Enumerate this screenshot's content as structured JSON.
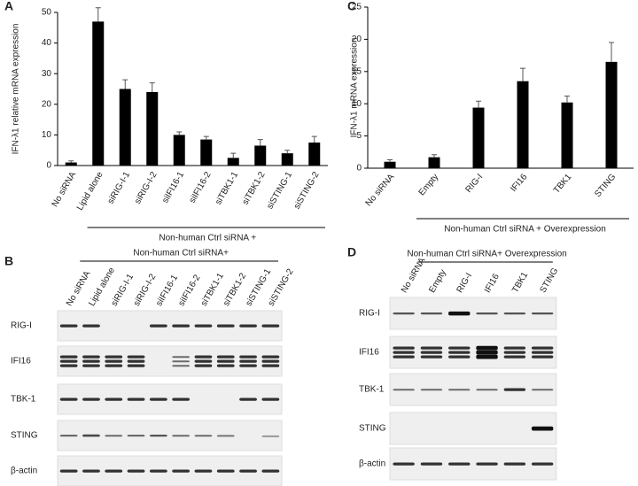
{
  "chart_data": [
    {
      "type": "bar",
      "label": "A",
      "y_label": "IFN-λ1 relative mRNA expression",
      "annotation": "Non-human Ctrl siRNA +",
      "categories": [
        "No siRNA",
        "Lipid alone",
        "siRIG-I-1",
        "siRIG-I-2",
        "siIFI16-1",
        "siIFI16-2",
        "siTBK1-1",
        "siTBK1-2",
        "siSTING-1",
        "siSTING-2"
      ],
      "values": [
        1,
        47,
        25,
        24,
        10,
        8.5,
        2.5,
        6.5,
        4,
        7.5
      ],
      "errors": [
        0.5,
        4.5,
        3,
        3,
        1,
        1,
        1.5,
        2,
        1,
        2
      ],
      "color": "#000000",
      "ylim": [
        0,
        50
      ],
      "yticks": [
        0,
        10,
        20,
        30,
        40,
        50
      ]
    },
    {
      "type": "bar",
      "label": "C",
      "y_label": "IFN-λ1 mRNA expression",
      "annotation": "Non-human Ctrl siRNA + Overexpression",
      "categories": [
        "No siRNA",
        "Empty",
        "RIG-I",
        "IFI16",
        "TBK1",
        "STING"
      ],
      "values": [
        1,
        1.7,
        9.4,
        13.5,
        10.2,
        16.5
      ],
      "errors": [
        0.3,
        0.4,
        1,
        2,
        1,
        3
      ],
      "color": "#000000",
      "ylim": [
        0,
        25
      ],
      "yticks": [
        0,
        5,
        10,
        15,
        20,
        25
      ]
    }
  ],
  "panel_b": {
    "label": "B",
    "header": "Non-human Ctrl siRNA+",
    "lanes": [
      "No siRNA",
      "Lipid alone",
      "siRIG-I-1",
      "siRIG-I-2",
      "siIFI16-1",
      "siIFI16-2",
      "siTBK1-1",
      "siTBK1-2",
      "siSTING-1",
      "siSTING-2"
    ],
    "rows": [
      "RIG-I",
      "IFI16",
      "TBK-1",
      "STING",
      "β-actin"
    ]
  },
  "panel_d": {
    "label": "D",
    "header": "Non-human Ctrl siRNA+ Overexpression",
    "lanes": [
      "No siRNA",
      "Empty",
      "RIG-I",
      "IFI16",
      "TBK1",
      "STING"
    ],
    "rows": [
      "RIG-I",
      "IFI16",
      "TBK-1",
      "STING",
      "β-actin"
    ]
  }
}
